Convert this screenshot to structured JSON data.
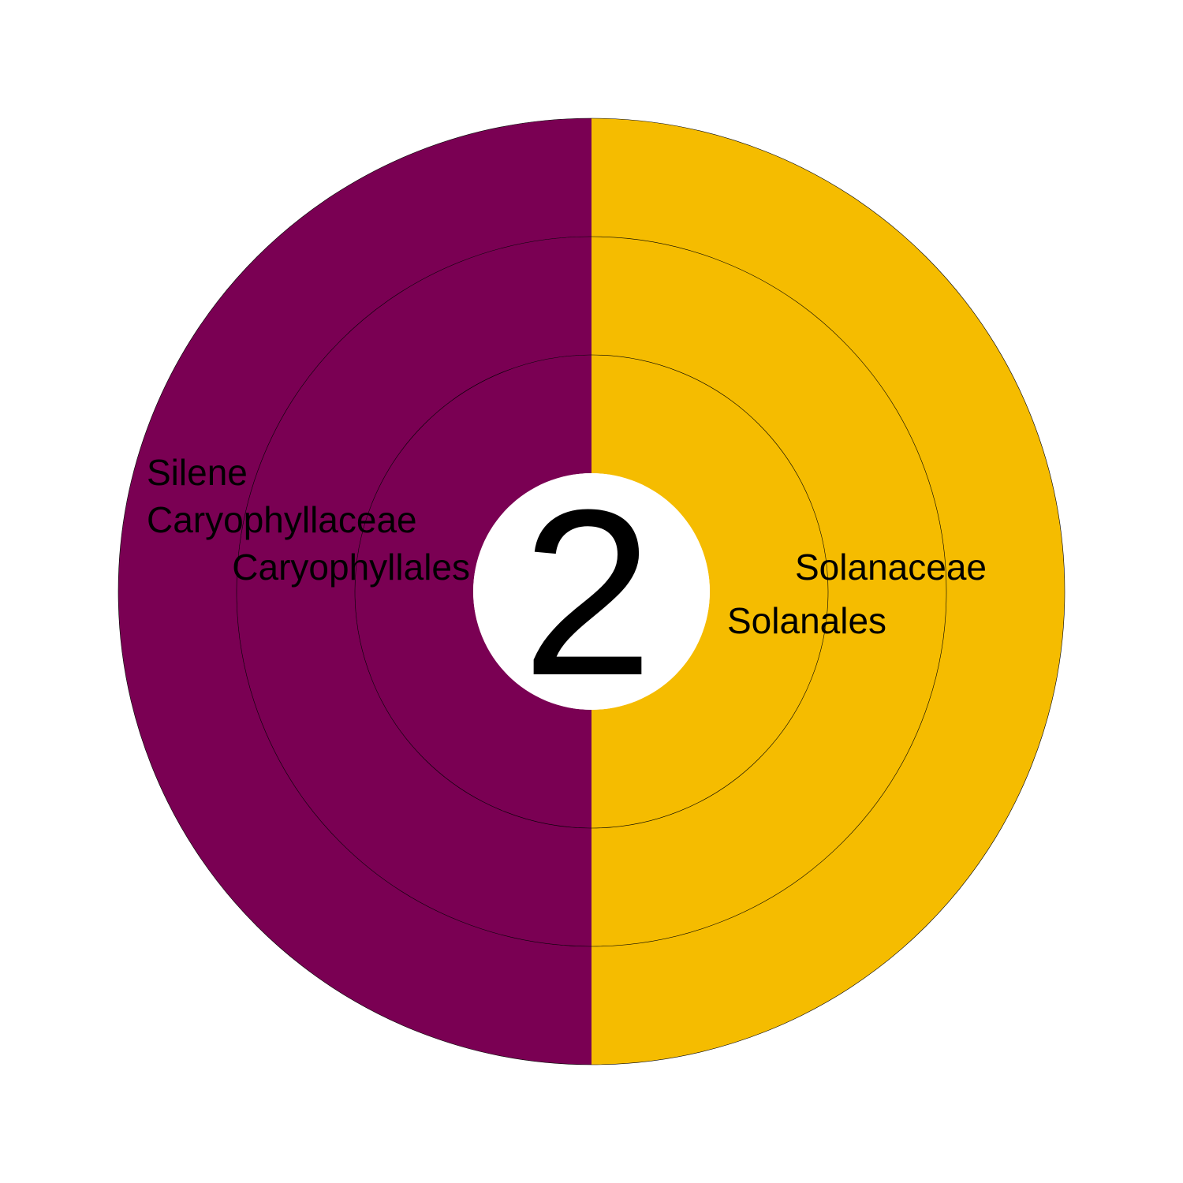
{
  "chart_data": {
    "type": "sunburst",
    "center_label": "2",
    "rings": [
      "order",
      "family",
      "genus"
    ],
    "segments": [
      {
        "name": "Caryophyllales",
        "value": 1,
        "color": "#7a0053",
        "children": [
          {
            "name": "Caryophyllaceae",
            "value": 1,
            "color": "#7a0053",
            "children": [
              {
                "name": "Silene",
                "value": 1,
                "color": "#7a0053"
              }
            ]
          }
        ]
      },
      {
        "name": "Solanales",
        "value": 1,
        "color": "#f5bc00",
        "children": [
          {
            "name": "Solanaceae",
            "value": 1,
            "color": "#f5bc00",
            "children": [
              {
                "name": "",
                "value": 1,
                "color": "#f5bc00"
              }
            ]
          }
        ]
      }
    ]
  }
}
